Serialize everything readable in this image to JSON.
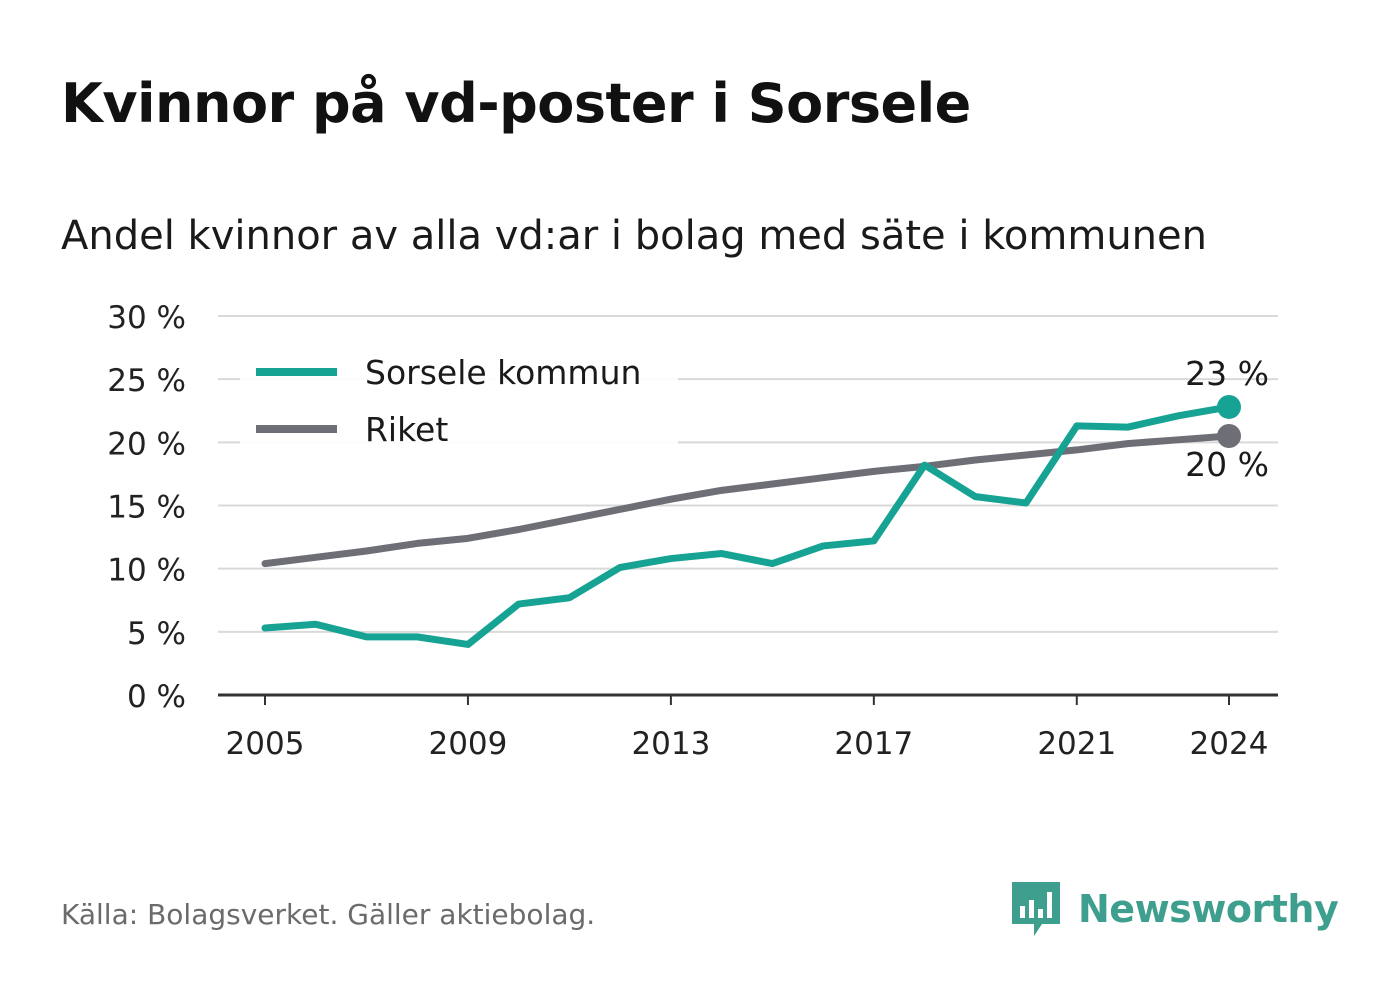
{
  "title": "Kvinnor på vd-poster i Sorsele",
  "subtitle": "Andel kvinnor av alla vd:ar i bolag med säte i kommunen",
  "footer": "Källa: Bolagsverket. Gäller aktiebolag.",
  "logo_text": "Newsworthy",
  "colors": {
    "sorsele": "#17a393",
    "riket": "#6e6e76",
    "grid": "#d9d9d9",
    "axis": "#333333",
    "logo": "#3f9f8e"
  },
  "chart_data": {
    "type": "line",
    "x": [
      2005,
      2006,
      2007,
      2008,
      2009,
      2010,
      2011,
      2012,
      2013,
      2014,
      2015,
      2016,
      2017,
      2018,
      2019,
      2020,
      2021,
      2022,
      2023,
      2024
    ],
    "series": [
      {
        "name": "Sorsele kommun",
        "values": [
          5.3,
          5.6,
          4.6,
          4.6,
          4.0,
          7.2,
          7.7,
          10.1,
          10.8,
          11.2,
          10.4,
          11.8,
          12.2,
          18.2,
          15.7,
          15.2,
          21.3,
          21.2,
          22.1,
          22.8
        ],
        "end_label": "23 %"
      },
      {
        "name": "Riket",
        "values": [
          10.4,
          10.9,
          11.4,
          12.0,
          12.4,
          13.1,
          13.9,
          14.7,
          15.5,
          16.2,
          16.7,
          17.2,
          17.7,
          18.1,
          18.6,
          19.0,
          19.4,
          19.9,
          20.2,
          20.5
        ],
        "end_label": "20 %"
      }
    ],
    "xticks": [
      2005,
      2009,
      2013,
      2017,
      2021,
      2024
    ],
    "xtick_labels": [
      "2005",
      "2009",
      "2013",
      "2017",
      "2021",
      "2024"
    ],
    "yticks": [
      0,
      5,
      10,
      15,
      20,
      25,
      30
    ],
    "ytick_labels": [
      "0 %",
      "5 %",
      "10 %",
      "15 %",
      "20 %",
      "25 %",
      "30 %"
    ],
    "ylim": [
      0,
      30
    ],
    "xlim": [
      2005,
      2024
    ],
    "grid": true,
    "legend_position": "top-left"
  }
}
